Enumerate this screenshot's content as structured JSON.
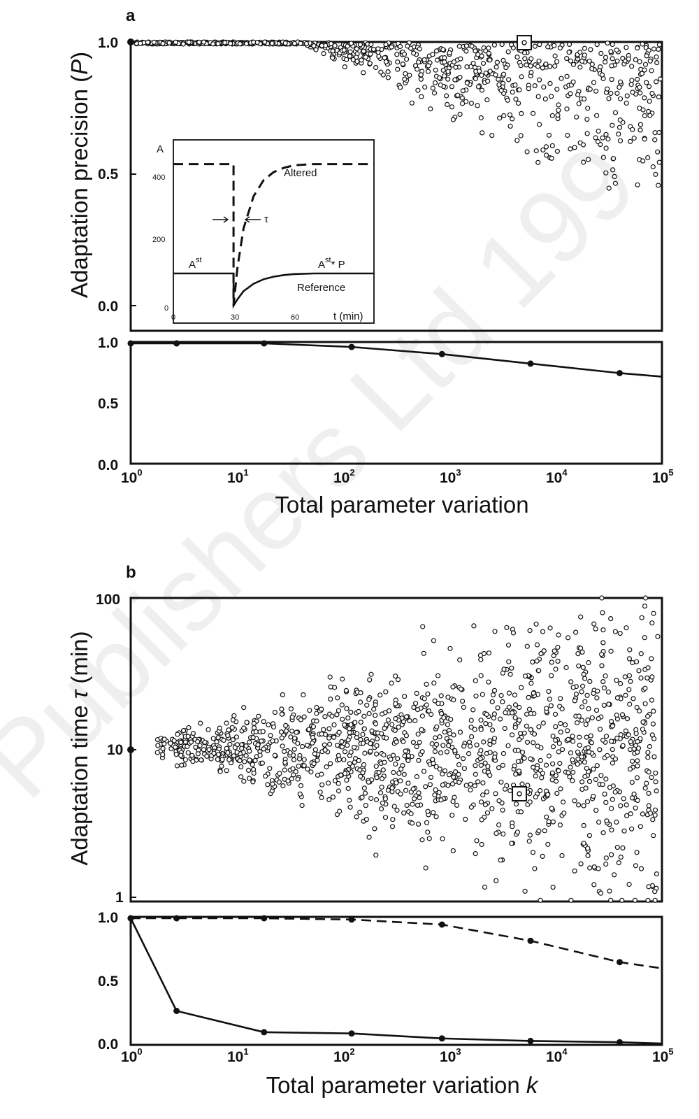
{
  "watermark": "Publishers Ltd 199",
  "chart_data": [
    {
      "panel": "a",
      "type": "scatter",
      "xscale": "log",
      "xlim": [
        1,
        100000
      ],
      "ylim": [
        -0.1,
        1.0
      ],
      "ylabel": "Adaptation precision (P)",
      "yticks": [
        0.0,
        0.5,
        1.0
      ],
      "highlighted_point": {
        "x": 3500,
        "y": 1.0
      },
      "scatter_description": "points cluster at P = 1.0 for low variation; from ~10^2 upward they spread down to about 0.45",
      "inset": {
        "type": "line",
        "ylabel": "A",
        "xlabel": "t (min)",
        "xticks": [
          0,
          30,
          60
        ],
        "yticks": [
          0,
          200,
          400
        ],
        "xlim": [
          0,
          100
        ],
        "ylim": [
          0,
          500
        ],
        "series": [
          {
            "name": "Altered",
            "style": "dashed",
            "x": [
              0,
              30,
              30,
              32,
              35,
              40,
              45,
              50,
              55,
              60,
              70,
              80,
              100
            ],
            "y": [
              440,
              440,
              0,
              120,
              240,
              340,
              390,
              415,
              428,
              436,
              440,
              440,
              440
            ]
          },
          {
            "name": "Reference",
            "style": "solid",
            "x": [
              0,
              30,
              30,
              32,
              35,
              40,
              45,
              50,
              55,
              60,
              70,
              80,
              100
            ],
            "y": [
              100,
              100,
              0,
              20,
              45,
              68,
              82,
              90,
              95,
              98,
              100,
              100,
              100
            ]
          }
        ],
        "annotations": [
          "τ",
          "A",
          "st",
          "A",
          "st",
          "* P"
        ]
      }
    },
    {
      "panel": "a-lower",
      "type": "line",
      "xscale": "log",
      "xlim": [
        1,
        100000
      ],
      "ylim": [
        0,
        1.0
      ],
      "xlabel": "Total parameter variation",
      "yticks": [
        0.0,
        0.5,
        1.0
      ],
      "xticks": [
        {
          "base": "10",
          "exp": "0"
        },
        {
          "base": "10",
          "exp": "1"
        },
        {
          "base": "10",
          "exp": "2"
        },
        {
          "base": "10",
          "exp": "3"
        },
        {
          "base": "10",
          "exp": "4"
        },
        {
          "base": "10",
          "exp": "5"
        }
      ],
      "series": [
        {
          "style": "solid",
          "x": [
            1,
            2.7,
            18,
            120,
            850,
            5800,
            40000,
            100000
          ],
          "y": [
            1.0,
            1.0,
            1.0,
            0.97,
            0.91,
            0.83,
            0.75,
            0.72
          ]
        }
      ]
    },
    {
      "panel": "b",
      "type": "scatter",
      "xscale": "log",
      "yscale": "log",
      "xlim": [
        1,
        100000
      ],
      "ylim": [
        0.9,
        100
      ],
      "ylabel": "Adaptation time τ (min)",
      "yticks": [
        1,
        10,
        100
      ],
      "highlighted_point": {
        "x": 5200,
        "y": 5
      },
      "scatter_description": "points start near τ = 10 at low variation and fan out between about 1 and 100 min as variation increases"
    },
    {
      "panel": "b-lower",
      "type": "line",
      "xscale": "log",
      "xlim": [
        1,
        100000
      ],
      "ylim": [
        0,
        1.0
      ],
      "xlabel": "Total parameter variation k",
      "yticks": [
        0.0,
        0.5,
        1.0
      ],
      "xticks": [
        {
          "base": "10",
          "exp": "0"
        },
        {
          "base": "10",
          "exp": "1"
        },
        {
          "base": "10",
          "exp": "2"
        },
        {
          "base": "10",
          "exp": "3"
        },
        {
          "base": "10",
          "exp": "4"
        },
        {
          "base": "10",
          "exp": "5"
        }
      ],
      "series": [
        {
          "style": "dashed",
          "x": [
            1,
            2.7,
            18,
            120,
            850,
            5800,
            40000,
            100000
          ],
          "y": [
            1.0,
            1.0,
            1.0,
            0.99,
            0.95,
            0.82,
            0.65,
            0.6
          ]
        },
        {
          "style": "solid",
          "x": [
            1,
            2.7,
            18,
            120,
            850,
            5800,
            40000,
            100000
          ],
          "y": [
            1.0,
            0.26,
            0.09,
            0.08,
            0.04,
            0.02,
            0.01,
            0.0
          ]
        }
      ]
    }
  ]
}
